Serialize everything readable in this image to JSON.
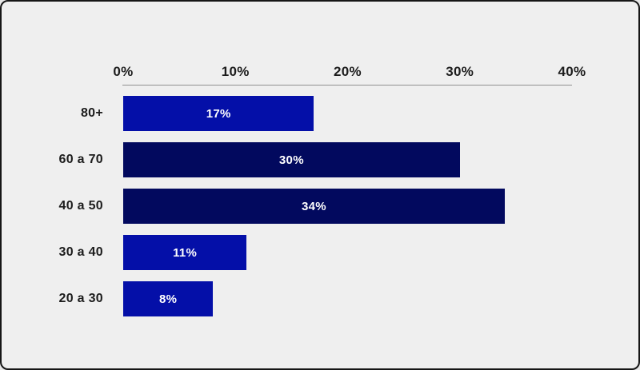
{
  "page": {
    "background_color": "#EFEFEF",
    "frame_border_color": "#161616"
  },
  "chart_data": {
    "type": "bar",
    "orientation": "horizontal",
    "title": "",
    "xlabel": "",
    "ylabel": "",
    "categories": [
      "80+",
      "60 a 70",
      "40 a 50",
      "30 a 40",
      "20 a 30"
    ],
    "values": [
      17,
      30,
      34,
      11,
      8
    ],
    "value_labels": [
      "17%",
      "30%",
      "34%",
      "11%",
      "8%"
    ],
    "bar_colors": [
      "#040FA8",
      "#02095E",
      "#02095E",
      "#040FA8",
      "#040FA8"
    ],
    "x_axis": {
      "position": "top",
      "ticks": [
        "0%",
        "10%",
        "20%",
        "30%",
        "40%"
      ],
      "min": 0,
      "max": 40,
      "line_color": "#909090"
    },
    "grid": false,
    "legend": false,
    "colors": {
      "bright_blue": "#040FA8",
      "navy": "#02095E",
      "axis_text": "#1C1C1C",
      "value_text": "#FFFFFF"
    }
  }
}
